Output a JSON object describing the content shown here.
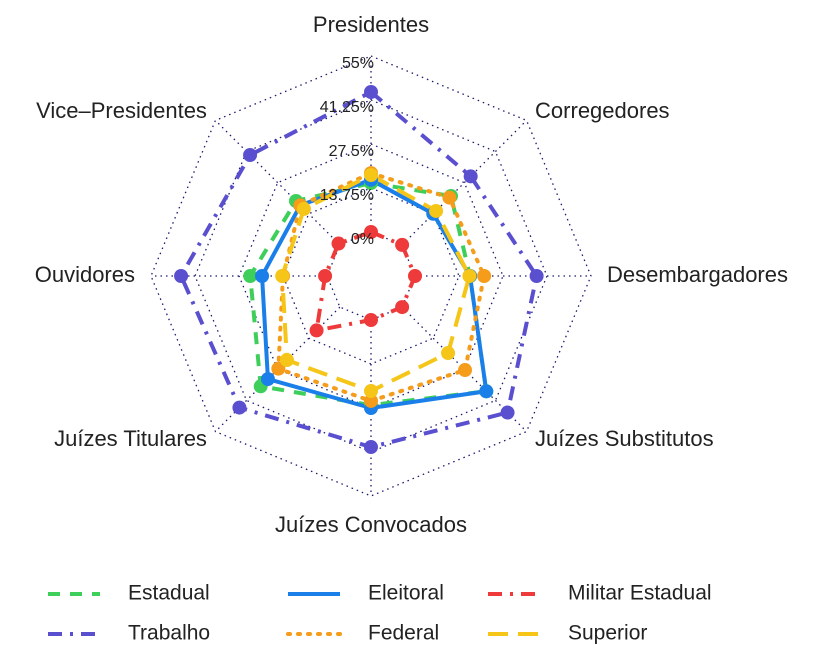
{
  "chart_data": {
    "type": "radar",
    "categories": [
      "Presidentes",
      "Corregedores",
      "Desembargadores",
      "Juízes Substitutos",
      "Juízes Convocados",
      "Juízes Titulares",
      "Ouvidores",
      "Vice–Presidentes"
    ],
    "rlim": [
      0,
      55
    ],
    "rticks": [
      {
        "value": 0,
        "label": "0%"
      },
      {
        "value": 13.75,
        "label": "13.75%"
      },
      {
        "value": 27.5,
        "label": "27.5%"
      },
      {
        "value": 41.25,
        "label": "41.25%"
      },
      {
        "value": 55,
        "label": "55%"
      }
    ],
    "series": [
      {
        "name": "Estadual",
        "color": "#3ecf5a",
        "dash": "dash",
        "values": [
          15.3,
          21.6,
          17.2,
          37.2,
          26.6,
          35,
          24,
          19.4
        ]
      },
      {
        "name": "Eleitoral",
        "color": "#1a7fe8",
        "dash": "solid",
        "values": [
          16.3,
          13.75,
          17.2,
          37.2,
          27.5,
          31.8,
          20.3,
          17.5
        ]
      },
      {
        "name": "Militar Estadual",
        "color": "#ee3a3a",
        "dash": "dashdot",
        "values": [
          0,
          0,
          0,
          0,
          0,
          10.3,
          0.6,
          0.6
        ]
      },
      {
        "name": "Trabalho",
        "color": "#5a4fcf",
        "dash": "dashdot",
        "values": [
          43.75,
          30.3,
          38,
          46.6,
          39.7,
          44.4,
          45.6,
          39.7
        ]
      },
      {
        "name": "Federal",
        "color": "#f59c1a",
        "dash": "dot",
        "values": [
          18.4,
          20.9,
          21.6,
          27.8,
          25.3,
          27.2,
          13.75,
          17.5
        ]
      },
      {
        "name": "Superior",
        "color": "#f5c518",
        "dash": "longdash",
        "values": [
          17.8,
          15,
          17,
          20.3,
          22.2,
          23.4,
          14,
          15.9
        ]
      }
    ]
  }
}
